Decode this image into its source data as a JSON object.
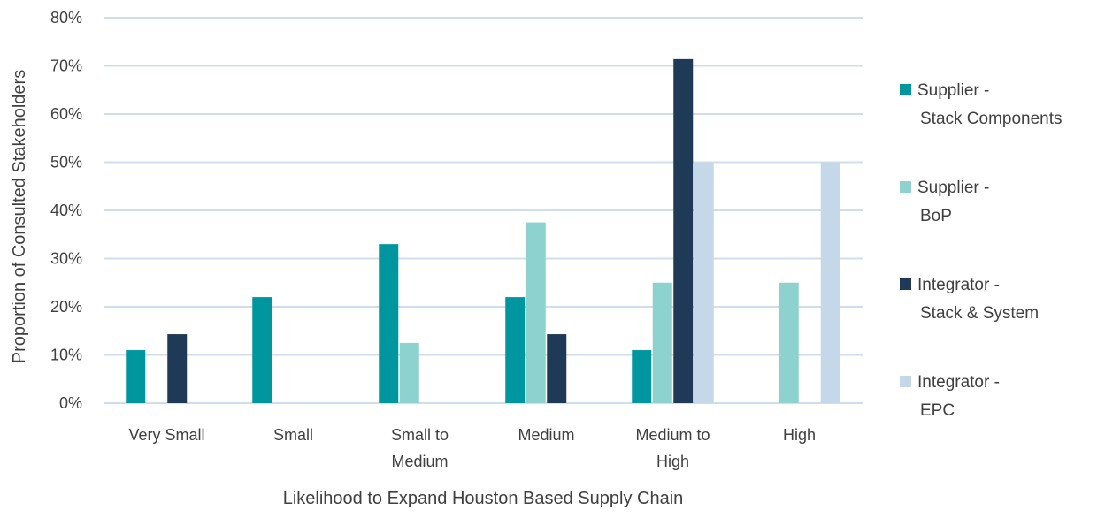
{
  "chart_data": {
    "type": "bar",
    "title": "",
    "xlabel": "Likelihood to Expand Houston Based Supply Chain",
    "ylabel": "Proportion of Consulted Stakeholders",
    "ylim": [
      0,
      80
    ],
    "yticks": [
      "0%",
      "10%",
      "20%",
      "30%",
      "40%",
      "50%",
      "60%",
      "70%",
      "80%"
    ],
    "grid": "horizontal",
    "legend_position": "right",
    "categories": [
      [
        "Very Small"
      ],
      [
        "Small"
      ],
      [
        "Small to",
        "Medium"
      ],
      [
        "Medium"
      ],
      [
        "Medium to",
        "High"
      ],
      [
        "High"
      ]
    ],
    "series": [
      {
        "name_lines": [
          "Supplier -",
          "Stack Components"
        ],
        "color": "#0096A0",
        "values": [
          11,
          22,
          33,
          22,
          11,
          0
        ]
      },
      {
        "name_lines": [
          "Supplier -",
          "BoP"
        ],
        "color": "#8ED2CF",
        "values": [
          0,
          0,
          12.5,
          37.5,
          25,
          25
        ]
      },
      {
        "name_lines": [
          "Integrator -",
          "Stack & System"
        ],
        "color": "#1F3A56",
        "values": [
          14.3,
          0,
          0,
          14.3,
          71.4,
          0
        ]
      },
      {
        "name_lines": [
          "Integrator -",
          "EPC"
        ],
        "color": "#C5D8EA",
        "values": [
          0,
          0,
          0,
          0,
          50,
          50
        ]
      }
    ],
    "gridline_color": "#D0DEEC"
  }
}
